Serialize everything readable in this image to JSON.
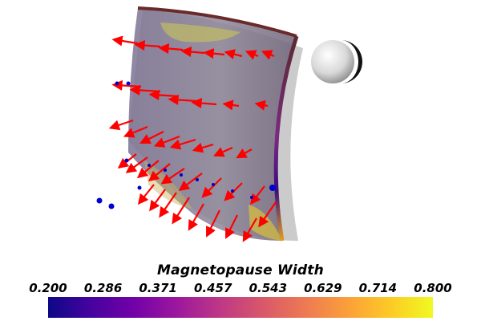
{
  "colorbar": {
    "title": "Magnetopause Width",
    "ticks": [
      "0.200",
      "0.286",
      "0.371",
      "0.457",
      "0.543",
      "0.629",
      "0.714",
      "0.800"
    ],
    "range": [
      0.2,
      0.8
    ],
    "colormap": "plasma",
    "stops": [
      "#0d0887",
      "#46039f",
      "#7201a8",
      "#9c179e",
      "#bd3786",
      "#d8576b",
      "#ed7953",
      "#fb9f3a",
      "#fdca26",
      "#f0f921"
    ]
  },
  "scene": {
    "objects": [
      "magnetopause-surface",
      "earth-sphere",
      "velocity-arrows",
      "sample-points"
    ],
    "colors": {
      "arrow": "#ff0000",
      "point": "#0000cc",
      "surface": "#8a7f9a",
      "shadow": "#b9b9b9"
    }
  }
}
